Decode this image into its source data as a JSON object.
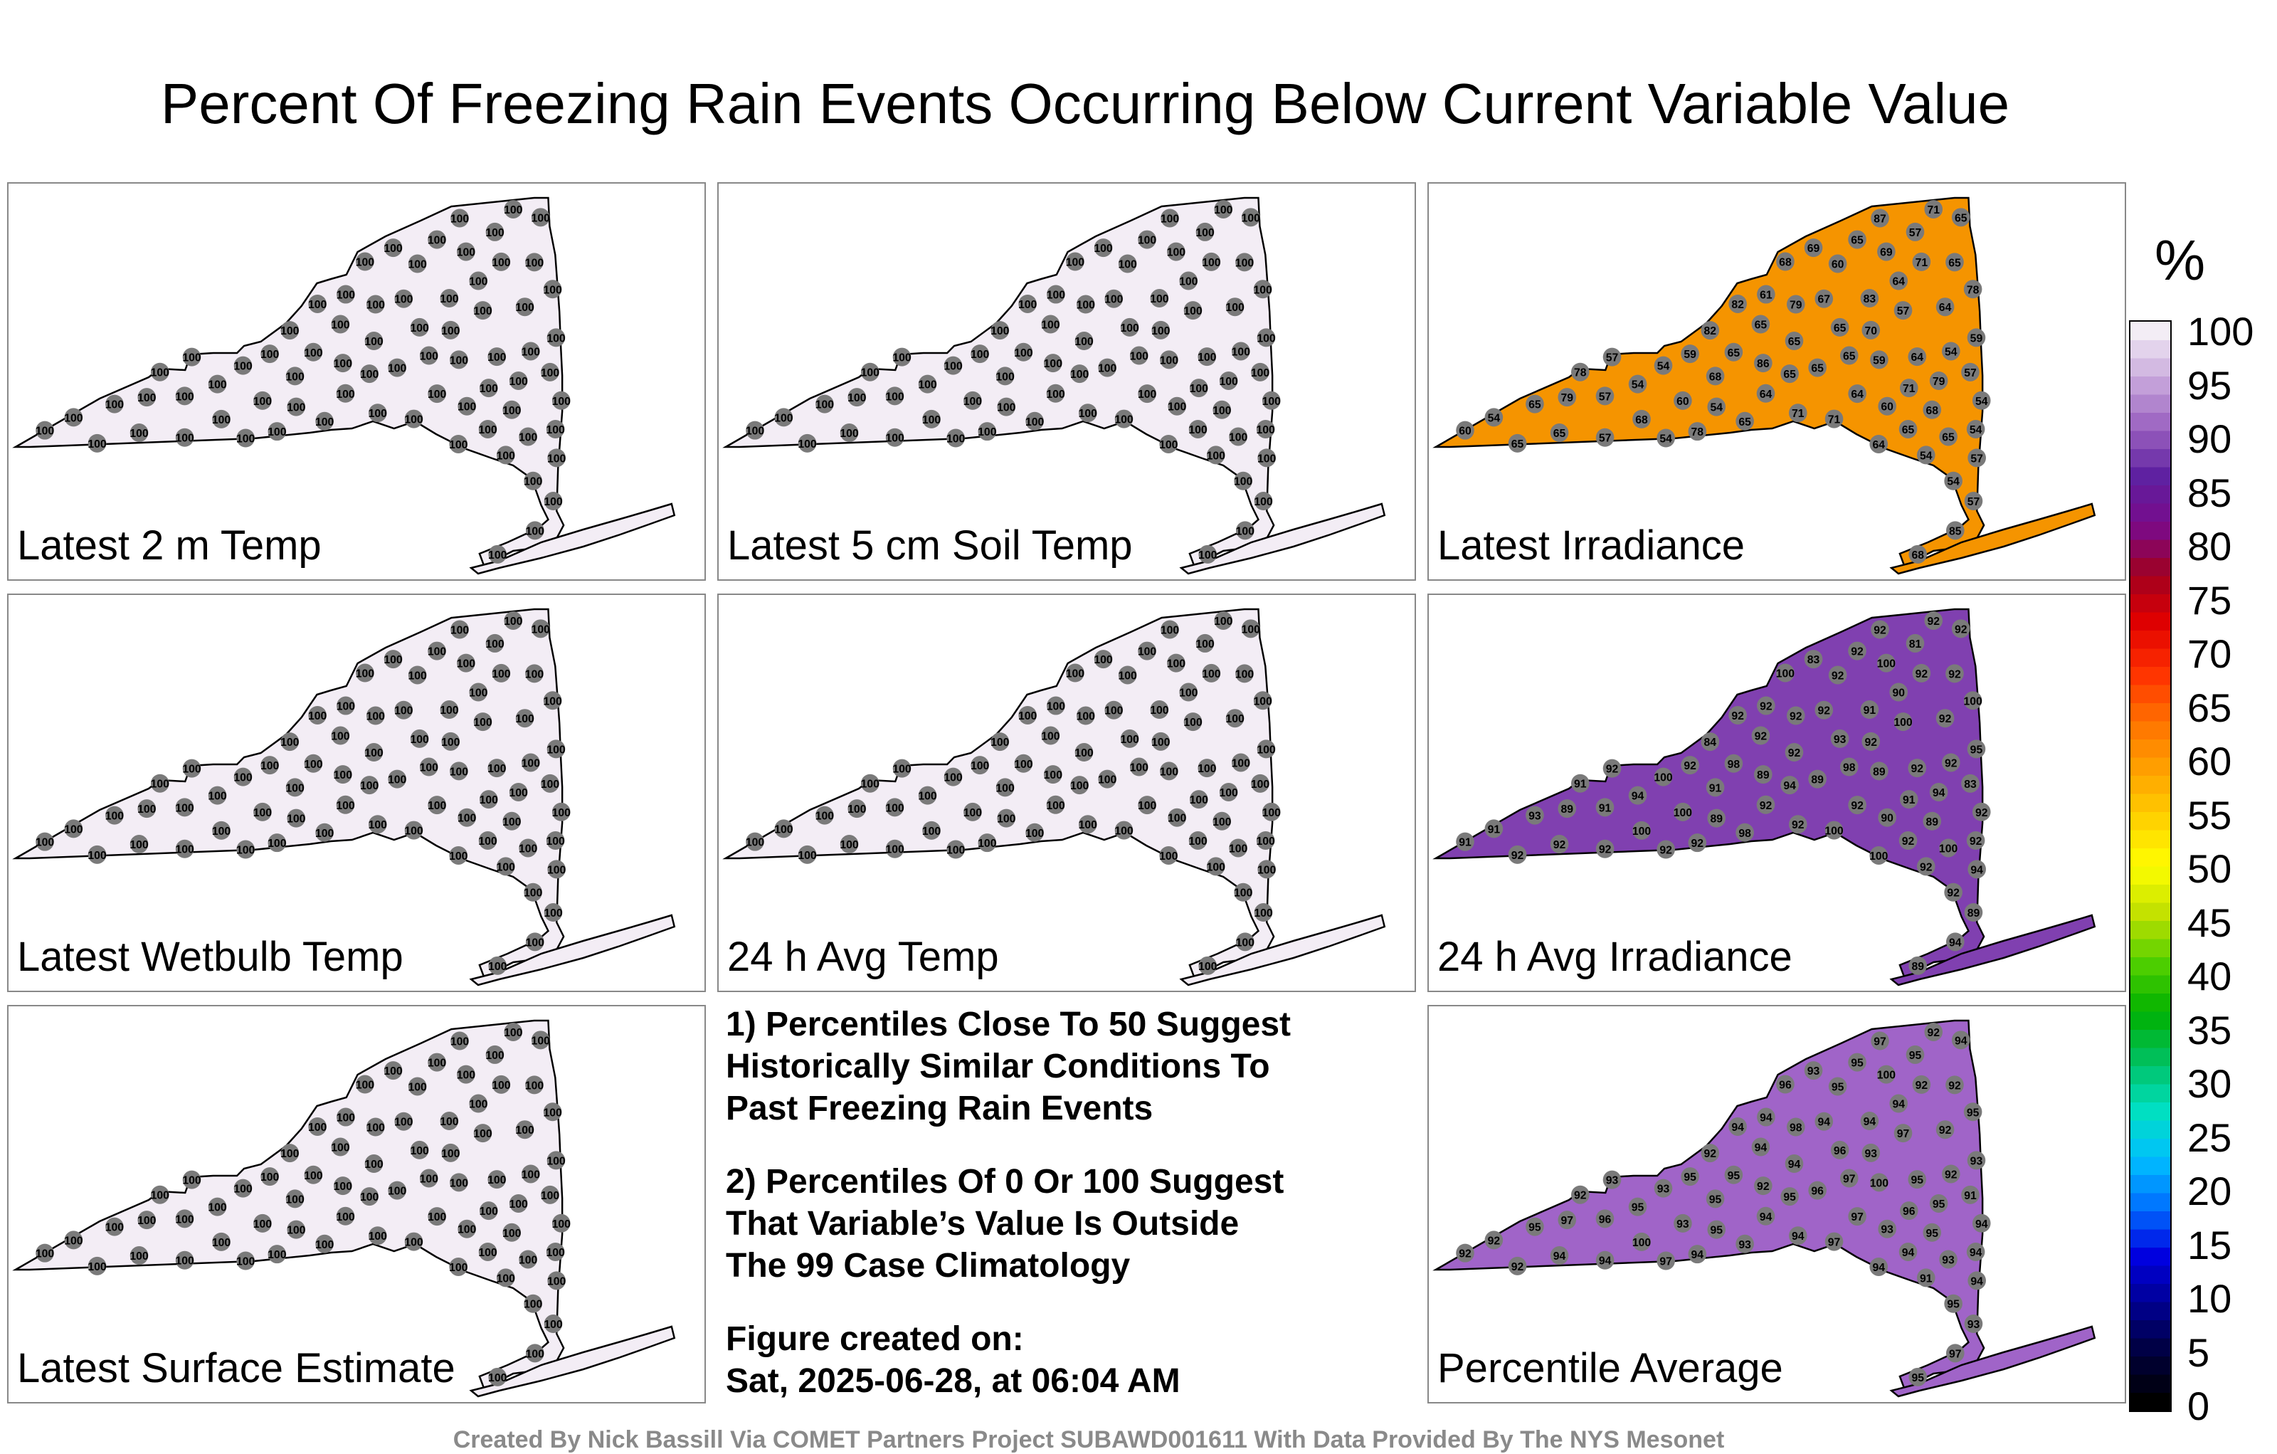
{
  "title": "Percent Of Freezing Rain Events Occurring Below Current Variable Value",
  "panels": [
    {
      "label": "Latest 2 m Temp",
      "fill": "#f3edf5",
      "values": [
        100,
        100,
        100,
        100,
        100,
        100,
        100,
        100,
        100,
        100,
        100,
        100,
        100,
        100,
        100,
        100,
        100,
        100,
        100,
        100,
        100,
        100,
        100,
        100,
        100,
        100,
        100,
        100,
        100,
        100,
        100,
        100,
        100,
        100,
        100,
        100,
        100,
        100,
        100,
        100,
        100,
        100,
        100,
        100,
        100,
        100,
        100,
        100,
        100,
        100,
        100,
        100,
        100,
        100,
        100,
        100,
        100,
        100,
        100,
        100,
        100,
        100,
        100,
        100,
        100,
        100,
        100,
        100,
        100,
        100,
        100,
        100,
        100,
        100,
        100,
        100,
        100,
        100,
        100,
        100,
        100,
        100,
        100,
        100,
        100,
        100,
        100,
        100,
        100,
        100,
        100,
        100,
        100,
        100,
        100,
        100,
        100,
        100,
        100,
        100,
        100
      ]
    },
    {
      "label": "Latest 5 cm Soil Temp",
      "fill": "#f3edf5",
      "values": [
        100,
        100,
        100,
        100,
        100,
        100,
        100,
        100,
        100,
        100,
        100,
        100,
        100,
        100,
        100,
        100,
        100,
        100,
        100,
        100,
        100,
        100,
        100,
        100,
        100,
        100,
        100,
        100,
        100,
        100,
        100,
        100,
        100,
        100,
        100,
        100,
        100,
        100,
        100,
        100,
        100,
        100,
        100,
        100,
        100,
        100,
        100,
        100,
        100,
        100,
        100,
        100,
        100,
        100,
        100,
        100,
        100,
        100,
        100,
        100,
        100,
        100,
        100,
        100,
        100,
        100,
        100,
        100,
        100,
        100,
        100,
        100,
        100,
        100,
        100,
        100,
        100,
        100,
        100,
        100,
        100,
        100,
        100,
        100,
        100,
        100,
        100,
        100,
        100,
        100,
        100,
        100,
        100,
        100,
        100,
        100,
        100,
        100,
        100,
        100,
        100
      ]
    },
    {
      "label": "Latest Irradiance",
      "fill": "#f59400",
      "values": [
        69,
        68,
        78,
        79,
        85,
        65,
        79,
        65,
        65,
        54,
        60,
        57,
        65,
        65,
        68,
        59,
        71,
        57,
        79,
        78,
        71,
        65,
        65,
        67,
        68,
        57,
        65,
        65,
        54,
        65,
        57,
        64,
        82,
        83,
        71,
        54,
        64,
        57,
        65,
        64,
        65,
        65,
        59,
        68,
        57,
        71,
        82,
        70,
        64,
        65,
        86,
        60,
        64,
        68,
        87,
        57,
        60,
        64,
        54,
        61,
        65,
        69,
        54,
        78,
        71,
        54,
        54,
        54,
        65,
        54,
        59,
        57,
        54,
        60,
        54,
        54,
        59,
        60,
        54,
        54,
        54,
        54,
        78,
        54,
        54,
        59,
        54,
        54,
        54,
        54,
        54,
        57,
        54,
        54,
        54,
        54,
        57,
        54,
        54,
        64,
        54
      ]
    },
    {
      "label": "Latest Wetbulb Temp",
      "fill": "#f3edf5",
      "values": [
        100,
        100,
        100,
        100,
        100,
        100,
        100,
        100,
        100,
        100,
        100,
        100,
        100,
        100,
        100,
        100,
        100,
        100,
        100,
        100,
        100,
        100,
        100,
        100,
        100,
        100,
        100,
        100,
        100,
        100,
        100,
        100,
        100,
        100,
        100,
        100,
        100,
        100,
        100,
        100,
        100,
        100,
        100,
        100,
        100,
        100,
        100,
        100,
        100,
        100,
        100,
        100,
        100,
        100,
        100,
        100,
        100,
        100,
        100,
        100,
        100,
        100,
        100,
        100,
        100,
        100,
        100,
        100,
        100,
        100,
        100,
        100,
        100,
        100,
        100,
        100,
        100,
        100,
        100,
        100,
        100,
        100,
        100,
        100,
        100,
        100,
        100,
        100,
        100,
        100,
        100,
        100,
        100,
        100,
        100,
        100,
        100,
        100,
        100,
        100,
        100
      ]
    },
    {
      "label": "24 h Avg Temp",
      "fill": "#f3edf5",
      "values": [
        100,
        100,
        100,
        100,
        100,
        100,
        100,
        100,
        100,
        100,
        100,
        100,
        100,
        100,
        100,
        100,
        100,
        100,
        100,
        100,
        100,
        100,
        100,
        100,
        100,
        100,
        100,
        100,
        100,
        100,
        100,
        100,
        100,
        100,
        100,
        100,
        100,
        100,
        100,
        100,
        100,
        100,
        100,
        100,
        100,
        100,
        100,
        100,
        100,
        100,
        100,
        100,
        100,
        100,
        100,
        100,
        100,
        100,
        100,
        100,
        100,
        100,
        100,
        100,
        100,
        100,
        100,
        100,
        100,
        100,
        100,
        100,
        100,
        100,
        100,
        100,
        100,
        100,
        100,
        100,
        100,
        100,
        100,
        100,
        100,
        100,
        100,
        100,
        100,
        100,
        100,
        100,
        100,
        100,
        100,
        100,
        100,
        100,
        100,
        100,
        100
      ]
    },
    {
      "label": "24 h Avg Irradiance",
      "fill": "#8040b0",
      "values": [
        100,
        100,
        100,
        94,
        94,
        98,
        92,
        92,
        100,
        92,
        92,
        100,
        98,
        92,
        100,
        95,
        92,
        91,
        89,
        92,
        100,
        93,
        92,
        92,
        89,
        81,
        89,
        92,
        100,
        98,
        92,
        92,
        84,
        91,
        91,
        92,
        100,
        92,
        92,
        92,
        92,
        92,
        89,
        91,
        83,
        92,
        92,
        92,
        92,
        92,
        89,
        91,
        90,
        89,
        92,
        89,
        100,
        92,
        94,
        92,
        94,
        83,
        91,
        91,
        92,
        92,
        92,
        92,
        93,
        92,
        92,
        94,
        89,
        90,
        83,
        89,
        84,
        92,
        92,
        92,
        85,
        91,
        92,
        92,
        93,
        92,
        92,
        93,
        92,
        92,
        92,
        97,
        92,
        92,
        92,
        92,
        92,
        100,
        100,
        90,
        98
      ]
    },
    {
      "label": "Latest Surface Estimate",
      "fill": "#f3edf5",
      "values": [
        100,
        100,
        100,
        100,
        100,
        100,
        100,
        100,
        100,
        100,
        100,
        100,
        100,
        100,
        100,
        100,
        100,
        100,
        100,
        100,
        100,
        100,
        100,
        100,
        100,
        100,
        100,
        100,
        100,
        100,
        100,
        100,
        100,
        100,
        100,
        100,
        100,
        100,
        100,
        100,
        100,
        100,
        100,
        100,
        100,
        100,
        100,
        100,
        100,
        100,
        100,
        100,
        100,
        100,
        100,
        100,
        100,
        100,
        100,
        100,
        100,
        100,
        100,
        100,
        100,
        100,
        100,
        100,
        100,
        100,
        100,
        100,
        100,
        100,
        100,
        100,
        100,
        100,
        100,
        100,
        100,
        100,
        100,
        100,
        100,
        100,
        100,
        100,
        100,
        100,
        100,
        100,
        100,
        100,
        100,
        100,
        100,
        100,
        100,
        100,
        100
      ]
    },
    {
      "label": "Percentile Average",
      "fill": "#a064c8",
      "values": [
        100,
        96,
        95,
        95,
        97,
        97,
        98,
        94,
        93,
        95,
        95,
        97,
        95,
        94,
        100,
        93,
        92,
        96,
        97,
        94,
        97,
        95,
        94,
        94,
        95,
        95,
        96,
        94,
        93,
        93,
        94,
        95,
        92,
        94,
        96,
        94,
        94,
        93,
        94,
        92,
        92,
        95,
        100,
        95,
        91,
        94,
        94,
        93,
        94,
        92,
        92,
        92,
        94,
        95,
        97,
        93,
        93,
        97,
        95,
        94,
        95,
        93,
        92,
        92,
        92,
        94,
        92,
        91,
        96,
        97,
        95,
        94,
        95,
        93,
        92,
        93,
        92,
        92,
        92,
        93,
        93,
        92,
        91,
        92,
        92,
        93,
        92,
        92,
        92,
        91,
        91,
        93,
        91,
        93,
        94,
        92,
        94,
        92,
        92,
        93,
        95
      ]
    }
  ],
  "notes": {
    "line1": "1) Percentiles Close To 50 Suggest",
    "line2": "Historically Similar Conditions To",
    "line3": "Past Freezing Rain Events",
    "line4": "2) Percentiles Of 0 Or 100 Suggest",
    "line5": "That Variable’s Value Is Outside",
    "line6": "The 99 Case Climatology",
    "line7": "Figure created on:",
    "line8": "Sat, 2025-06-28, at 06:04 AM"
  },
  "colorbar": {
    "unit": "%",
    "ticks": [
      "100",
      "95",
      "90",
      "85",
      "80",
      "75",
      "70",
      "65",
      "60",
      "55",
      "50",
      "45",
      "40",
      "35",
      "30",
      "25",
      "20",
      "15",
      "10",
      "5",
      "0"
    ],
    "colors": [
      "#000000",
      "#00003c",
      "#000090",
      "#0000e0",
      "#0070ff",
      "#00c0ff",
      "#00e0c0",
      "#00c060",
      "#00b000",
      "#50d000",
      "#c0e000",
      "#ffff00",
      "#ffd000",
      "#ffa000",
      "#ff7000",
      "#ff3000",
      "#e00000",
      "#a00020",
      "#7a0a8a",
      "#5e20a0",
      "#9a60c0",
      "#c8a8dc",
      "#f3edf5"
    ]
  },
  "footer": "Created By Nick Bassill Via COMET Partners Project SUBAWD001611 With Data Provided By The NYS Mesonet"
}
